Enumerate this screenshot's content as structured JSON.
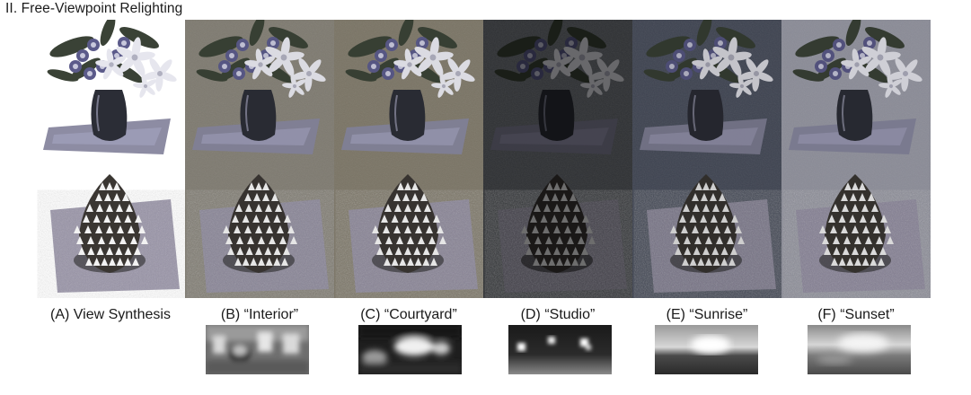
{
  "section_title": "II. Free-Viewpoint Relighting",
  "panels": [
    {
      "id": "A",
      "caption": "(A) View Synthesis",
      "background": "#ffffff",
      "brightness": 1.0
    },
    {
      "id": "B",
      "caption": "(B) “Interior”",
      "background": "#7e7a70",
      "brightness": 0.95
    },
    {
      "id": "C",
      "caption": "(C) “Courtyard”",
      "background": "#7a7465",
      "brightness": 0.95
    },
    {
      "id": "D",
      "caption": "(D) “Studio”",
      "background": "#2e3033",
      "brightness": 0.45
    },
    {
      "id": "E",
      "caption": "(E) “Sunrise”",
      "background": "#3e4350",
      "brightness": 0.85
    },
    {
      "id": "F",
      "caption": "(F) “Sunset”",
      "background": "#8a8b96",
      "brightness": 0.9
    }
  ],
  "colors": {
    "flower_petal": "#e6e6ee",
    "flower_purple": "#5b5a8a",
    "leaf": "#3a4236",
    "vase": "#2b2d36",
    "table": "#8e8da6",
    "pinecone": "#3a3632",
    "pinecone_tip": "#f2f2f2",
    "ground": "#8f8aa0"
  }
}
